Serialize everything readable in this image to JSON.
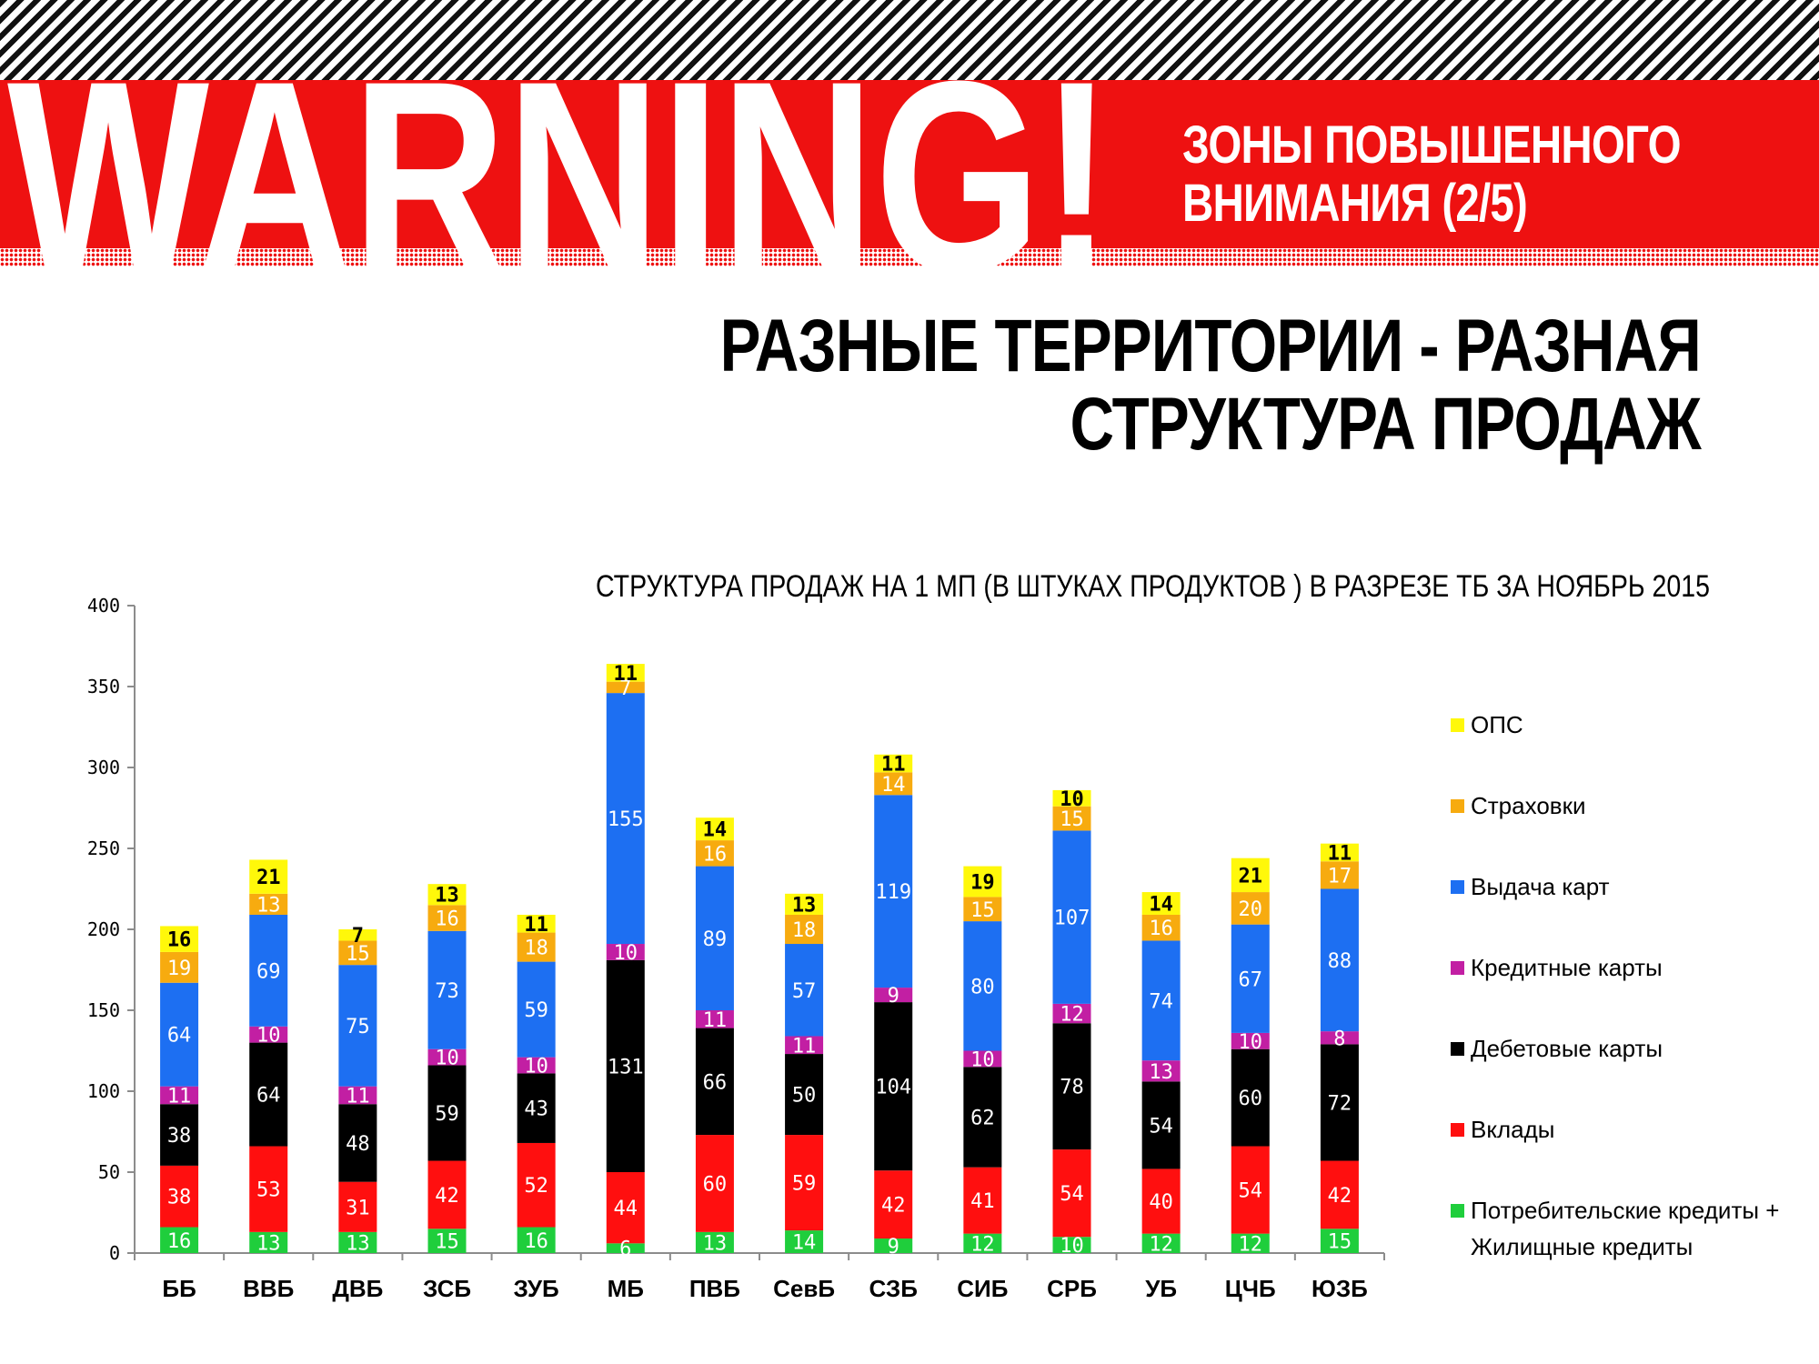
{
  "header": {
    "warning_text": "WARNING!",
    "subtitle_line1": "ЗОНЫ ПОВЫШЕННОГО",
    "subtitle_line2": "ВНИМАНИЯ (2/5)",
    "colors": {
      "stripe_dark": "#111111",
      "band_red": "#ee1111"
    }
  },
  "heading": {
    "line1": "РАЗНЫЕ ТЕРРИТОРИИ - РАЗНАЯ",
    "line2": "СТРУКТУРА ПРОДАЖ"
  },
  "chart_data": {
    "type": "bar",
    "stacked": true,
    "title": "СТРУКТУРА  ПРОДАЖ  НА 1 МП (В ШТУКАХ ПРОДУКТОВ ) В РАЗРЕЗЕ  ТБ  ЗА НОЯБРЬ 2015",
    "xlabel": "",
    "ylabel": "",
    "ylim": [
      0,
      400
    ],
    "yticks": [
      0,
      50,
      100,
      150,
      200,
      250,
      300,
      350,
      400
    ],
    "grid": false,
    "legend_position": "right",
    "categories": [
      "ББ",
      "ВВБ",
      "ДВБ",
      "ЗСБ",
      "ЗУБ",
      "МБ",
      "ПВБ",
      "СевБ",
      "СЗБ",
      "СИБ",
      "СРБ",
      "УБ",
      "ЦЧБ",
      "ЮЗБ"
    ],
    "series": [
      {
        "name": "Потребительские кредиты + Жилищные кредиты",
        "color": "#1fce3c",
        "label_color": "#ffffff",
        "values": [
          16,
          13,
          13,
          15,
          16,
          6,
          13,
          14,
          9,
          12,
          10,
          12,
          12,
          15
        ]
      },
      {
        "name": "Вклады",
        "color": "#ff0f0f",
        "label_color": "#ffffff",
        "values": [
          38,
          53,
          31,
          42,
          52,
          44,
          60,
          59,
          42,
          41,
          54,
          40,
          54,
          42
        ]
      },
      {
        "name": "Дебетовые карты",
        "color": "#000000",
        "label_color": "#ffffff",
        "values": [
          38,
          64,
          48,
          59,
          43,
          131,
          66,
          50,
          104,
          62,
          78,
          54,
          60,
          72
        ]
      },
      {
        "name": "Кредитные карты",
        "color": "#c21fa3",
        "label_color": "#ffffff",
        "values": [
          11,
          10,
          11,
          10,
          10,
          10,
          11,
          11,
          9,
          10,
          12,
          13,
          10,
          8
        ]
      },
      {
        "name": "Выдача карт",
        "color": "#1d6ff2",
        "label_color": "#ffffff",
        "values": [
          64,
          69,
          75,
          73,
          59,
          155,
          89,
          57,
          119,
          80,
          107,
          74,
          67,
          88
        ]
      },
      {
        "name": "Страховки",
        "color": "#f7ab0f",
        "label_color": "#ffffff",
        "values": [
          19,
          13,
          15,
          16,
          18,
          7,
          16,
          18,
          14,
          15,
          15,
          16,
          20,
          17
        ]
      },
      {
        "name": "ОПС",
        "color": "#fff80a",
        "label_color": "#000000",
        "values": [
          16,
          21,
          7,
          13,
          11,
          11,
          14,
          13,
          11,
          19,
          10,
          14,
          21,
          11
        ]
      }
    ],
    "legend_order": [
      "ОПС",
      "Страховки",
      "Выдача карт",
      "Кредитные карты",
      "Дебетовые карты",
      "Вклады",
      "Потребительские кредиты + Жилищные кредиты"
    ]
  }
}
